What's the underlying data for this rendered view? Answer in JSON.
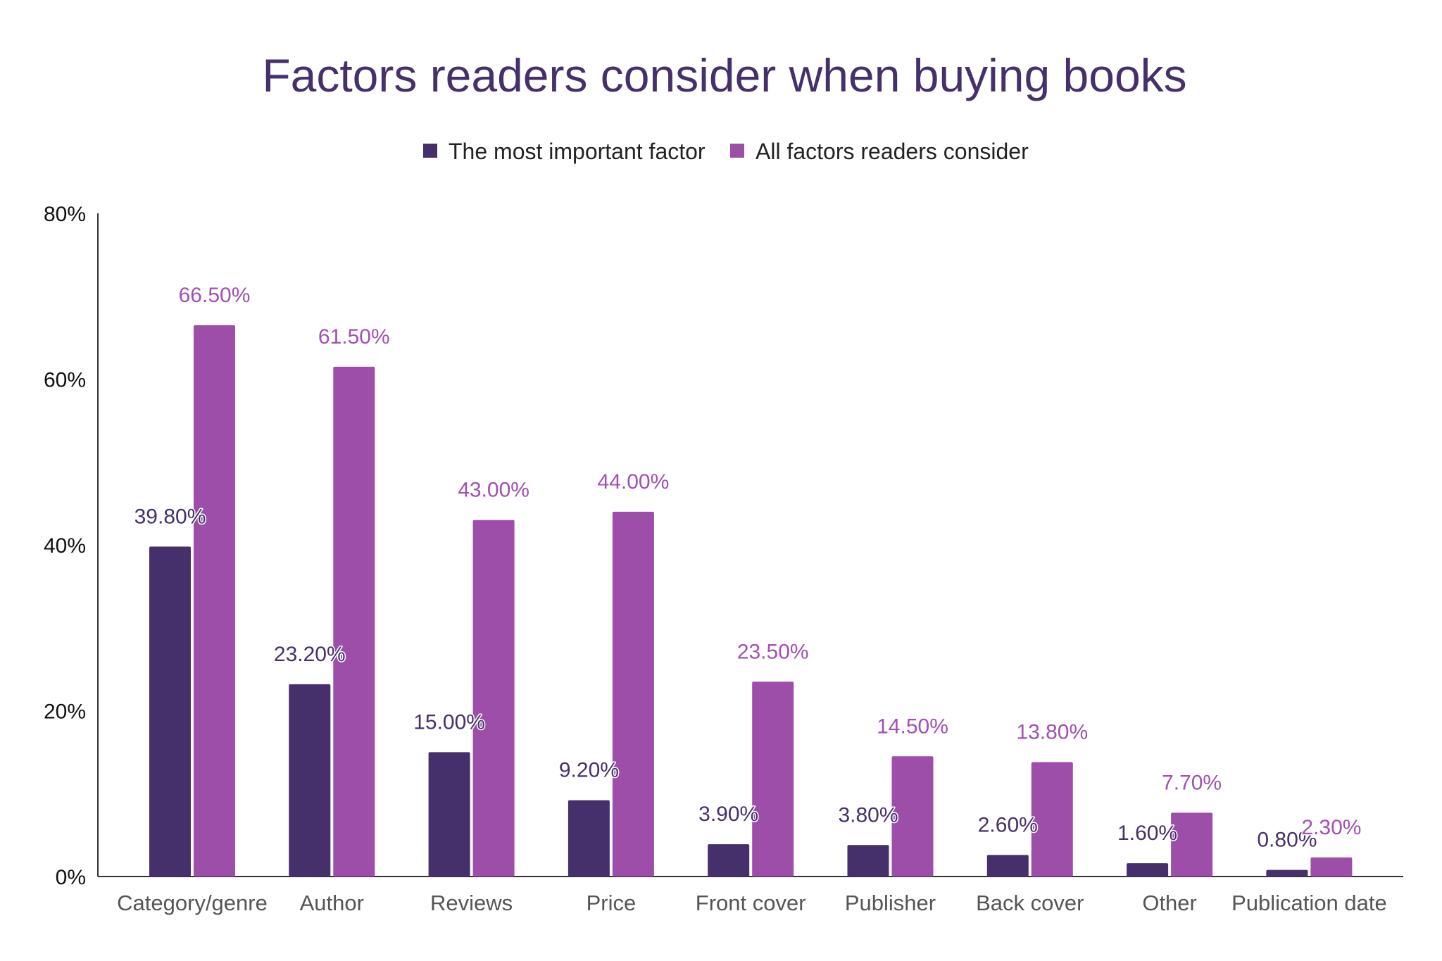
{
  "chart_data": {
    "type": "bar",
    "title": "Factors readers consider when buying books",
    "xlabel": "",
    "ylabel": "",
    "ylim": [
      0,
      80
    ],
    "yticks": [
      "0%",
      "20%",
      "40%",
      "60%",
      "80%"
    ],
    "ytick_values": [
      0,
      20,
      40,
      60,
      80
    ],
    "grid": false,
    "legend_position": "top",
    "categories": [
      "Category/genre",
      "Author",
      "Reviews",
      "Price",
      "Front cover",
      "Publisher",
      "Back cover",
      "Other",
      "Publication date"
    ],
    "series": [
      {
        "name": "The most important factor",
        "color": "#45306b",
        "values": [
          39.8,
          23.2,
          15.0,
          9.2,
          3.9,
          3.8,
          2.6,
          1.6,
          0.8
        ],
        "labels": [
          "39.80%",
          "23.20%",
          "15.00%",
          "9.20%",
          "3.90%",
          "3.80%",
          "2.60%",
          "1.60%",
          "0.80%"
        ]
      },
      {
        "name": "All factors readers consider",
        "color": "#9c4ea8",
        "values": [
          66.5,
          61.5,
          43.0,
          44.0,
          23.5,
          14.5,
          13.8,
          7.7,
          2.3
        ],
        "labels": [
          "66.50%",
          "61.50%",
          "43.00%",
          "44.00%",
          "23.50%",
          "14.50%",
          "13.80%",
          "7.70%",
          "2.30%"
        ]
      }
    ]
  }
}
